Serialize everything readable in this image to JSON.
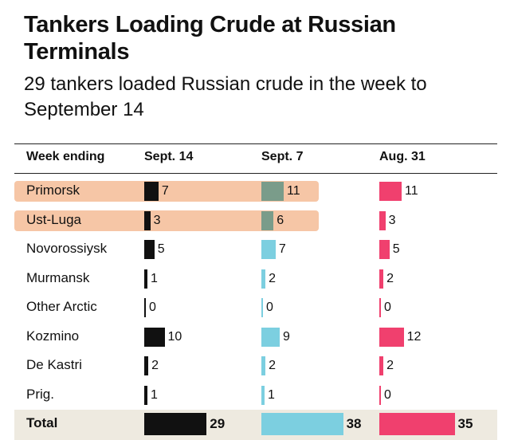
{
  "title": "Tankers Loading Crude at Russian Terminals",
  "subtitle": "29 tankers loaded Russian crude in the week to September 14",
  "chart_data": {
    "type": "bar",
    "title": "Tankers Loading Crude at Russian Terminals",
    "subtitle": "29 tankers loaded Russian crude in the week to September 14",
    "row_header": "Week ending",
    "categories": [
      "Primorsk",
      "Ust-Luga",
      "Novorossiysk",
      "Murmansk",
      "Other Arctic",
      "Kozmino",
      "De Kastri",
      "Prig."
    ],
    "highlighted": [
      "Primorsk",
      "Ust-Luga"
    ],
    "series": [
      {
        "name": "Sept. 14",
        "color": "#111111",
        "values": [
          7,
          3,
          5,
          1,
          0,
          10,
          2,
          1
        ],
        "total": 29
      },
      {
        "name": "Sept. 7",
        "color": "#7ccfe0",
        "values": [
          11,
          6,
          7,
          2,
          0,
          9,
          2,
          1
        ],
        "total": 38
      },
      {
        "name": "Aug. 31",
        "color": "#f0406e",
        "values": [
          11,
          3,
          5,
          2,
          0,
          12,
          2,
          0
        ],
        "total": 35
      }
    ],
    "total_label": "Total",
    "highlight_color": "#f6c6a6",
    "highlight_bar_color": "#7a9c8a"
  }
}
